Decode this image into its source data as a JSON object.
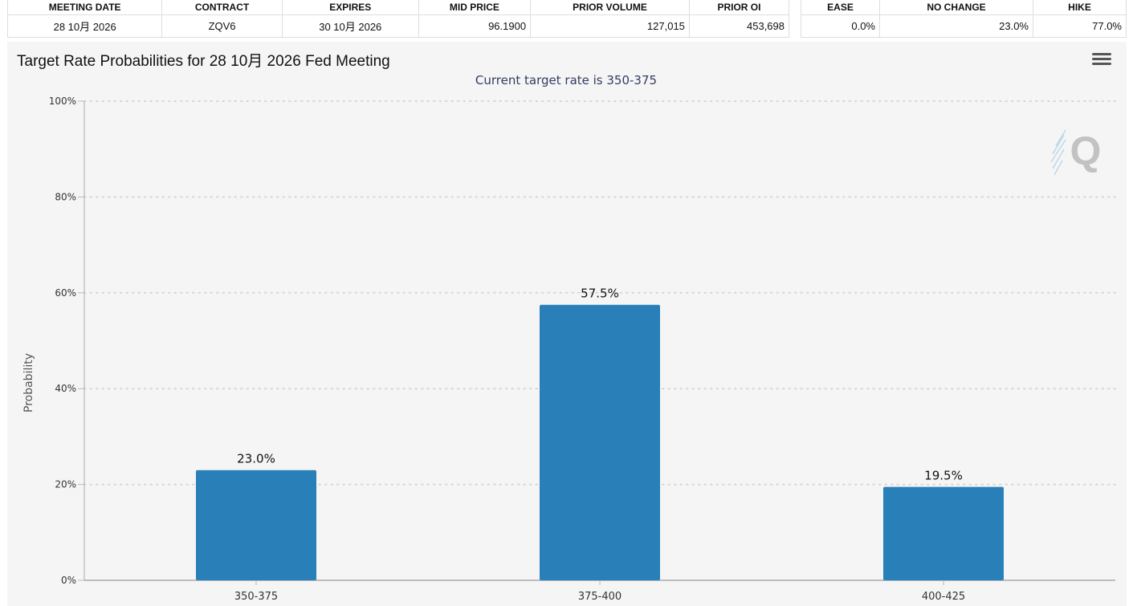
{
  "table": {
    "headers": [
      "MEETING DATE",
      "CONTRACT",
      "EXPIRES",
      "MID PRICE",
      "PRIOR VOLUME",
      "PRIOR OI"
    ],
    "row": {
      "meeting_date": "28 10月 2026",
      "contract": "ZQV6",
      "expires": "30 10月 2026",
      "mid_price": "96.1900",
      "prior_volume": "127,015",
      "prior_oi": "453,698"
    }
  },
  "probabilities": {
    "headers": [
      "EASE",
      "NO CHANGE",
      "HIKE"
    ],
    "values": [
      "0.0%",
      "23.0%",
      "77.0%"
    ]
  },
  "chart_menu_icon": "hamburger-menu-icon",
  "watermark_icon": "q-logo-icon",
  "colors": {
    "bar": "#2980b9",
    "panel": "#f5f5f5",
    "subtitle": "#333c60"
  },
  "chart_data": {
    "type": "bar",
    "title": "Target Rate Probabilities for 28 10月 2026 Fed Meeting",
    "subtitle": "Current target rate is 350-375",
    "xlabel": "",
    "ylabel": "Probability",
    "categories": [
      "350-375",
      "375-400",
      "400-425"
    ],
    "values": [
      23.0,
      57.5,
      19.5
    ],
    "data_labels": [
      "23.0%",
      "57.5%",
      "19.5%"
    ],
    "ylim": [
      0,
      100
    ],
    "yticks": [
      0,
      20,
      40,
      60,
      80,
      100
    ],
    "ytick_labels": [
      "0%",
      "20%",
      "40%",
      "60%",
      "80%",
      "100%"
    ],
    "grid": true,
    "legend": "none"
  }
}
